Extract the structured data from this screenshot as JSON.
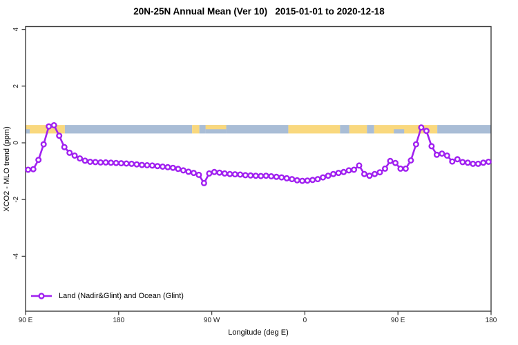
{
  "title": "20N-25N Annual Mean (Ver 10)   2015-01-01 to 2020-12-18",
  "legend": {
    "label": "Land (Nadir&Glint) and Ocean (Glint)"
  },
  "colors": {
    "series": "#A020F0",
    "land_band": "#F9D87E",
    "ocean_band": "#A9BDD6",
    "axis": "#3d3d3d",
    "tick_text": "#1a1a1a",
    "background": "#ffffff"
  },
  "axes": {
    "x": {
      "label": "Longitude (deg E)",
      "range": [
        90,
        540
      ],
      "ticks": [
        {
          "lon": 90,
          "label": "90 E"
        },
        {
          "lon": 180,
          "label": "180"
        },
        {
          "lon": 270,
          "label": "90 W"
        },
        {
          "lon": 360,
          "label": "0"
        },
        {
          "lon": 450,
          "label": "90 E"
        },
        {
          "lon": 540,
          "label": "180"
        }
      ]
    },
    "y": {
      "label": "XCO2 - MLO trend (ppm)",
      "range": [
        -5.9,
        4.1
      ],
      "ticks": [
        {
          "value": 4,
          "label": "4"
        },
        {
          "value": 2,
          "label": "2"
        },
        {
          "value": 0,
          "label": "0"
        },
        {
          "value": -2,
          "label": "-2"
        },
        {
          "value": -4,
          "label": "-4"
        }
      ]
    }
  },
  "land_ocean_strip": {
    "y_range_ppm": [
      0.33,
      0.63
    ],
    "segments": [
      {
        "from": 90,
        "to": 128,
        "type": "land",
        "part": "full"
      },
      {
        "from": 90,
        "to": 94,
        "type": "ocean",
        "part": "bottom"
      },
      {
        "from": 128,
        "to": 251,
        "type": "ocean",
        "part": "full"
      },
      {
        "from": 251,
        "to": 258,
        "type": "land",
        "part": "full"
      },
      {
        "from": 258,
        "to": 264,
        "type": "ocean",
        "part": "full"
      },
      {
        "from": 264,
        "to": 284,
        "type": "ocean",
        "part": "full"
      },
      {
        "from": 264,
        "to": 284,
        "type": "land",
        "part": "top"
      },
      {
        "from": 284,
        "to": 344,
        "type": "ocean",
        "part": "full"
      },
      {
        "from": 344,
        "to": 394,
        "type": "land",
        "part": "full"
      },
      {
        "from": 394,
        "to": 403,
        "type": "ocean",
        "part": "full"
      },
      {
        "from": 403,
        "to": 420,
        "type": "land",
        "part": "full"
      },
      {
        "from": 420,
        "to": 427,
        "type": "ocean",
        "part": "full"
      },
      {
        "from": 427,
        "to": 488,
        "type": "land",
        "part": "full"
      },
      {
        "from": 446,
        "to": 456,
        "type": "ocean",
        "part": "bottom"
      },
      {
        "from": 488,
        "to": 540,
        "type": "ocean",
        "part": "full"
      }
    ]
  },
  "chart_data": {
    "type": "line",
    "title": "20N-25N Annual Mean (Ver 10)   2015-01-01 to 2020-12-18",
    "xlabel": "Longitude (deg E)",
    "ylabel": "XCO2 - MLO trend (ppm)",
    "xlim": [
      90,
      540
    ],
    "ylim": [
      -5.9,
      4.1
    ],
    "grid": false,
    "legend_position": "bottom-left",
    "marker": "open-circle",
    "x": [
      92.5,
      97.5,
      102.5,
      107.5,
      112.5,
      117.5,
      122.5,
      127.5,
      132.5,
      137.5,
      142.5,
      147.5,
      152.5,
      157.5,
      162.5,
      167.5,
      172.5,
      177.5,
      182.5,
      187.5,
      192.5,
      197.5,
      202.5,
      207.5,
      212.5,
      217.5,
      222.5,
      227.5,
      232.5,
      237.5,
      242.5,
      247.5,
      252.5,
      257.5,
      262.5,
      267.5,
      272.5,
      277.5,
      282.5,
      287.5,
      292.5,
      297.5,
      302.5,
      307.5,
      312.5,
      317.5,
      322.5,
      327.5,
      332.5,
      337.5,
      342.5,
      347.5,
      352.5,
      357.5,
      362.5,
      367.5,
      372.5,
      377.5,
      382.5,
      387.5,
      392.5,
      397.5,
      402.5,
      407.5,
      412.5,
      417.5,
      422.5,
      427.5,
      432.5,
      437.5,
      442.5,
      447.5,
      452.5,
      457.5,
      462.5,
      467.5,
      472.5,
      477.5,
      482.5,
      487.5,
      492.5,
      497.5,
      502.5,
      507.5,
      512.5,
      517.5,
      522.5,
      527.5,
      532.5,
      537.5
    ],
    "series": [
      {
        "name": "Land (Nadir&Glint) and Ocean (Glint)",
        "color": "#A020F0",
        "values": [
          -0.95,
          -0.93,
          -0.6,
          -0.05,
          0.58,
          0.62,
          0.25,
          -0.15,
          -0.35,
          -0.45,
          -0.55,
          -0.63,
          -0.67,
          -0.68,
          -0.69,
          -0.69,
          -0.7,
          -0.71,
          -0.72,
          -0.73,
          -0.74,
          -0.76,
          -0.78,
          -0.79,
          -0.8,
          -0.82,
          -0.84,
          -0.86,
          -0.88,
          -0.92,
          -0.97,
          -1.02,
          -1.06,
          -1.13,
          -1.42,
          -1.08,
          -1.03,
          -1.05,
          -1.08,
          -1.1,
          -1.11,
          -1.12,
          -1.14,
          -1.15,
          -1.16,
          -1.17,
          -1.16,
          -1.18,
          -1.2,
          -1.22,
          -1.25,
          -1.28,
          -1.32,
          -1.34,
          -1.33,
          -1.31,
          -1.28,
          -1.22,
          -1.16,
          -1.1,
          -1.06,
          -1.03,
          -0.97,
          -0.95,
          -0.8,
          -1.1,
          -1.16,
          -1.1,
          -1.04,
          -0.91,
          -0.64,
          -0.71,
          -0.91,
          -0.91,
          -0.62,
          -0.05,
          0.54,
          0.42,
          -0.12,
          -0.42,
          -0.38,
          -0.45,
          -0.66,
          -0.58,
          -0.68,
          -0.7,
          -0.74,
          -0.74,
          -0.7,
          -0.67
        ]
      }
    ]
  }
}
